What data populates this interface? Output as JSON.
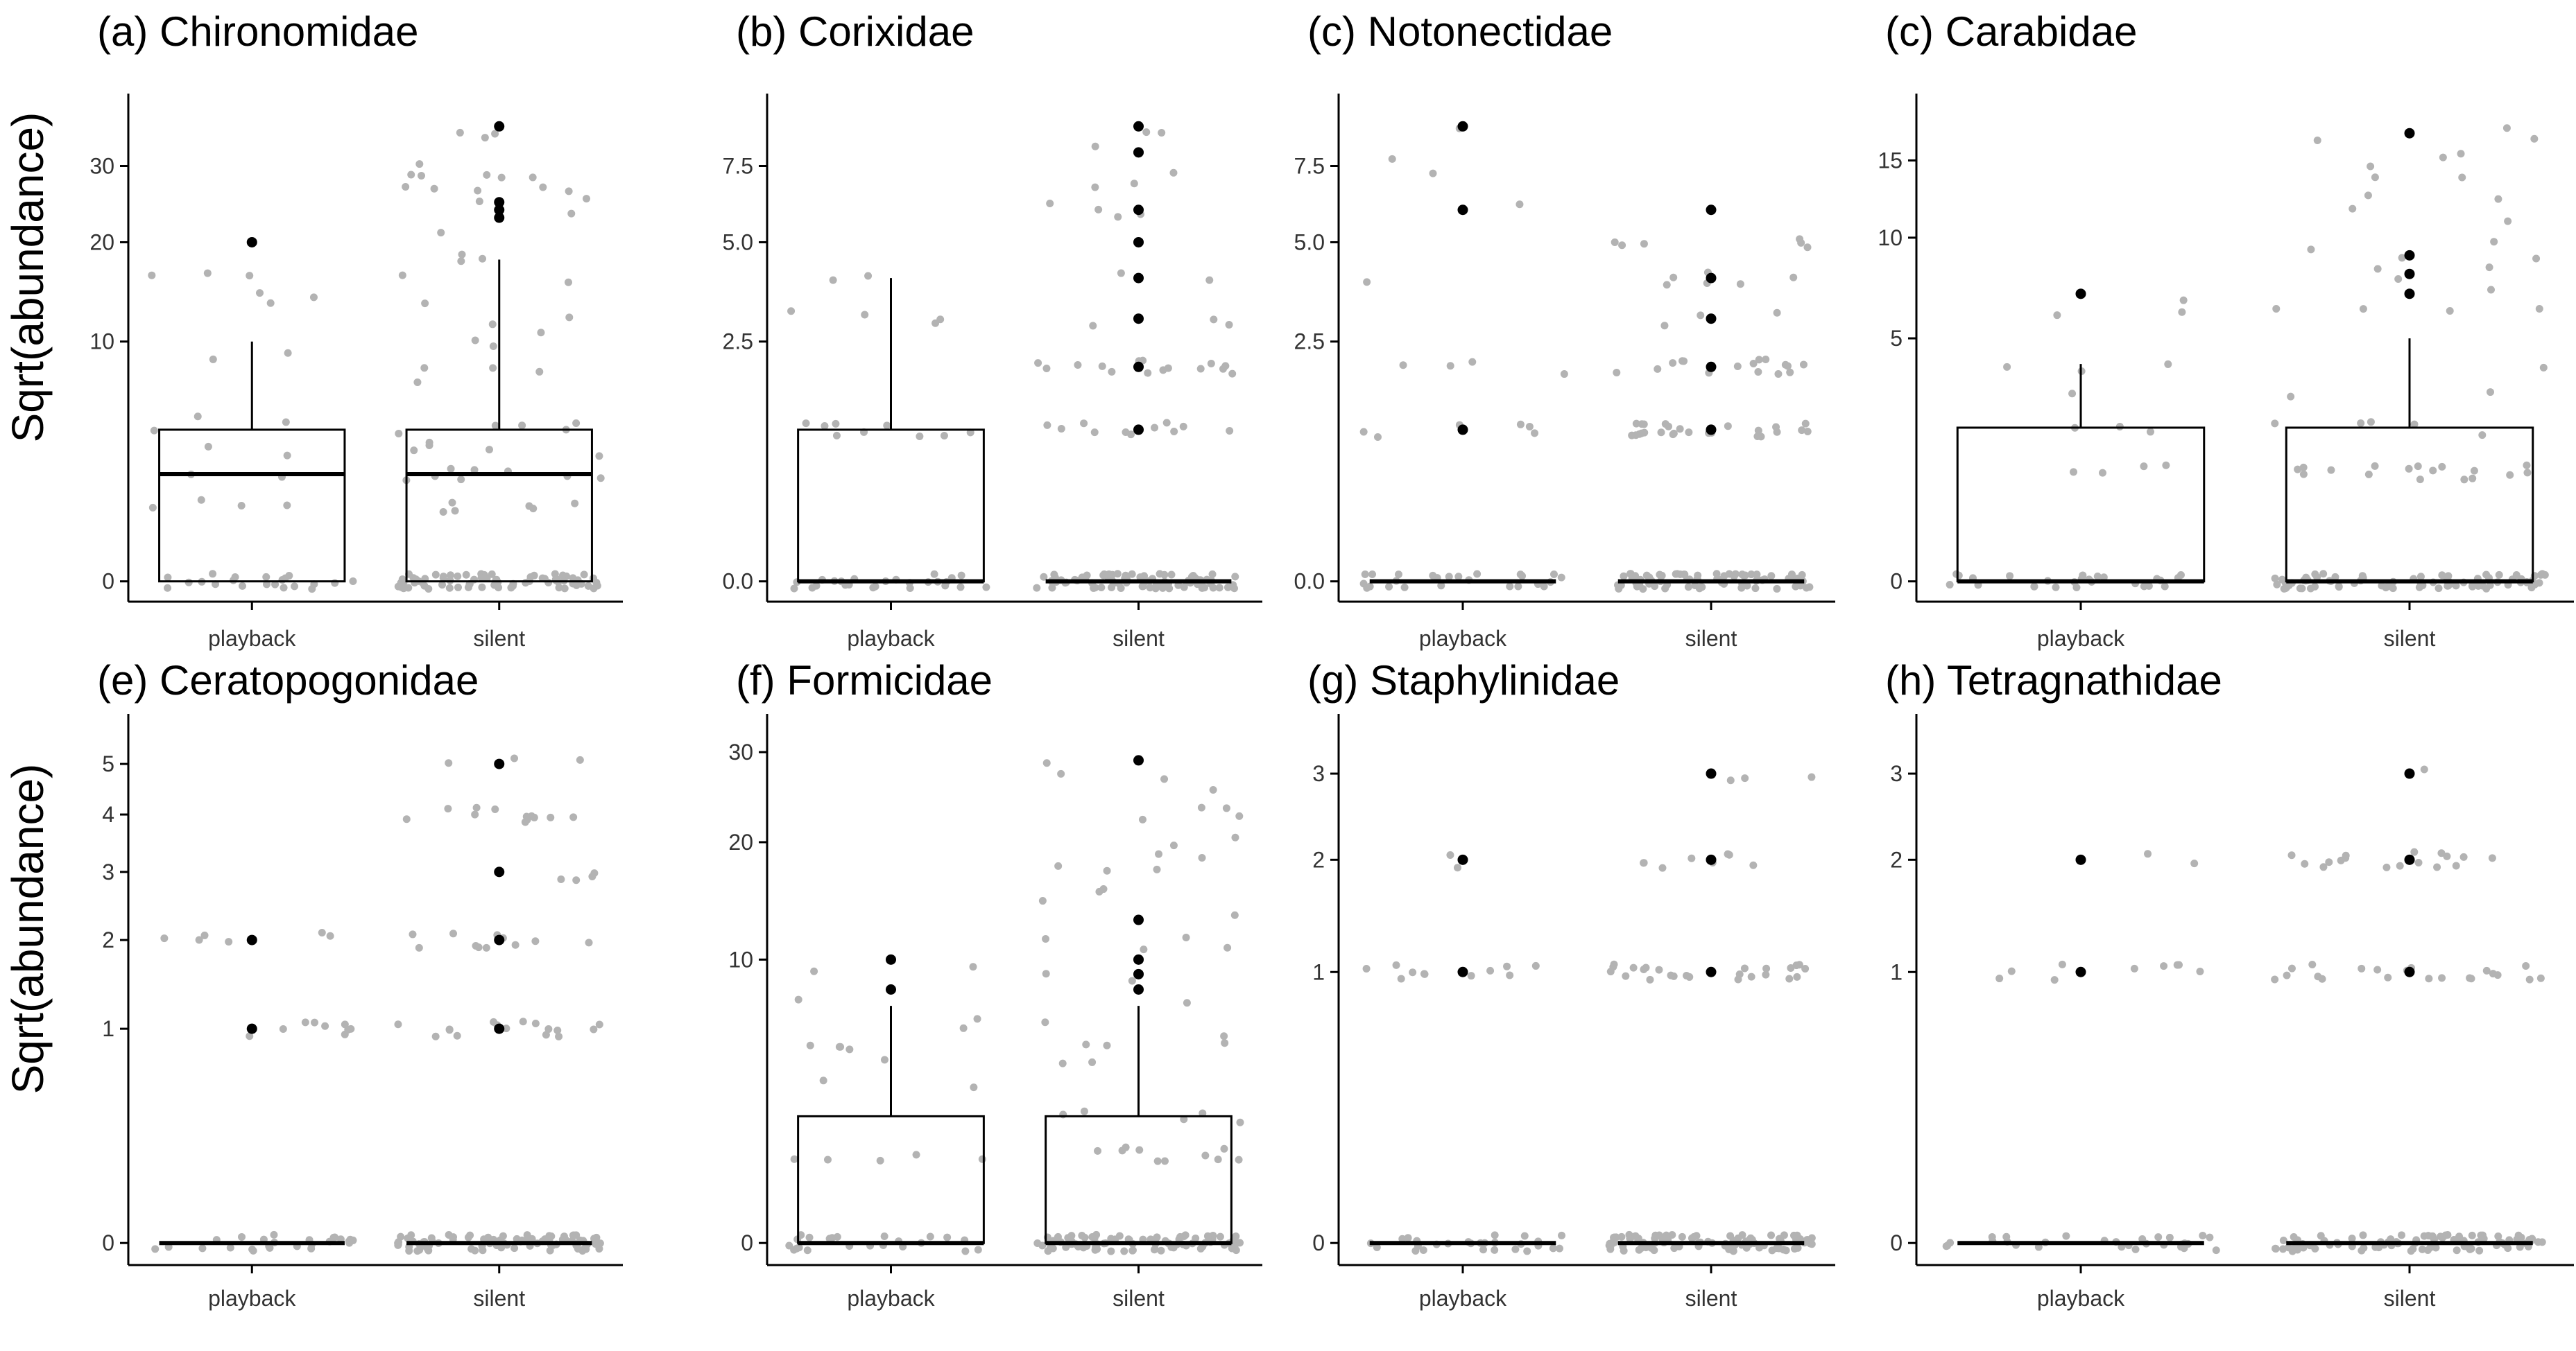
{
  "figure": {
    "y_axis_label": "Sqrt(abundance)",
    "colors": {
      "points": "#b3b3b3",
      "outliers": "#000000",
      "box": "#000000",
      "background": "#ffffff"
    }
  },
  "chart_data": [
    {
      "type": "box",
      "title": "(a) Chironomidae",
      "categories": [
        "playback",
        "silent"
      ],
      "y_scale": "sqrt",
      "yticks": [
        0,
        10,
        20,
        30
      ],
      "ylim": [
        0,
        38
      ],
      "boxes": [
        {
          "name": "playback",
          "q1": 0,
          "median": 2,
          "q3": 4,
          "whisker_low": 0,
          "whisker_high": 10,
          "outliers": [
            20
          ]
        },
        {
          "name": "silent",
          "q1": 0,
          "median": 2,
          "q3": 4,
          "whisker_low": 0,
          "whisker_high": 18,
          "outliers": [
            23,
            24,
            25,
            36
          ]
        }
      ]
    },
    {
      "type": "box",
      "title": "(b) Corixidae",
      "categories": [
        "playback",
        "silent"
      ],
      "y_scale": "sqrt",
      "yticks": [
        0.0,
        2.5,
        5.0,
        7.5
      ],
      "ylim": [
        0,
        9.5
      ],
      "boxes": [
        {
          "name": "playback",
          "q1": 0,
          "median": 0,
          "q3": 1,
          "whisker_low": 0,
          "whisker_high": 4,
          "outliers": []
        },
        {
          "name": "silent",
          "q1": 0,
          "median": 0,
          "q3": 0,
          "whisker_low": 0,
          "whisker_high": 0,
          "outliers": [
            1,
            2,
            3,
            4,
            5,
            6,
            8,
            9
          ]
        }
      ]
    },
    {
      "type": "box",
      "title": "(c) Notonectidae",
      "categories": [
        "playback",
        "silent"
      ],
      "y_scale": "sqrt",
      "yticks": [
        0.0,
        2.5,
        5.0,
        7.5
      ],
      "ylim": [
        0,
        9.5
      ],
      "boxes": [
        {
          "name": "playback",
          "q1": 0,
          "median": 0,
          "q3": 0,
          "whisker_low": 0,
          "whisker_high": 0,
          "outliers": [
            1,
            6,
            9
          ]
        },
        {
          "name": "silent",
          "q1": 0,
          "median": 0,
          "q3": 0,
          "whisker_low": 0,
          "whisker_high": 0,
          "outliers": [
            1,
            2,
            3,
            4,
            6
          ]
        }
      ]
    },
    {
      "type": "box",
      "title": "(c) Carabidae",
      "categories": [
        "playback",
        "silent"
      ],
      "y_scale": "sqrt",
      "yticks": [
        0,
        5,
        10,
        15
      ],
      "ylim": [
        0,
        18.5
      ],
      "boxes": [
        {
          "name": "playback",
          "q1": 0,
          "median": 0,
          "q3": 2,
          "whisker_low": 0,
          "whisker_high": 4,
          "outliers": [
            7
          ]
        },
        {
          "name": "silent",
          "q1": 0,
          "median": 0,
          "q3": 2,
          "whisker_low": 0,
          "whisker_high": 5,
          "outliers": [
            7,
            8,
            9,
            17
          ]
        }
      ]
    },
    {
      "type": "box",
      "title": "(e) Ceratopogonidae",
      "categories": [
        "playback",
        "silent"
      ],
      "y_scale": "sqrt",
      "yticks": [
        0,
        1,
        2,
        3,
        4,
        5
      ],
      "ylim": [
        0,
        5.6
      ],
      "boxes": [
        {
          "name": "playback",
          "q1": 0,
          "median": 0,
          "q3": 0,
          "whisker_low": 0,
          "whisker_high": 0,
          "outliers": [
            1,
            2
          ]
        },
        {
          "name": "silent",
          "q1": 0,
          "median": 0,
          "q3": 0,
          "whisker_low": 0,
          "whisker_high": 0,
          "outliers": [
            1,
            2,
            3,
            5
          ]
        }
      ]
    },
    {
      "type": "box",
      "title": "(f) Formicidae",
      "categories": [
        "playback",
        "silent"
      ],
      "y_scale": "sqrt",
      "yticks": [
        0,
        10,
        20,
        30
      ],
      "ylim": [
        0,
        32
      ],
      "boxes": [
        {
          "name": "playback",
          "q1": 0,
          "median": 0,
          "q3": 2,
          "whisker_low": 0,
          "whisker_high": 7,
          "outliers": [
            8,
            10
          ]
        },
        {
          "name": "silent",
          "q1": 0,
          "median": 0,
          "q3": 2,
          "whisker_low": 0,
          "whisker_high": 7,
          "outliers": [
            8,
            9,
            10,
            13,
            29
          ]
        }
      ]
    },
    {
      "type": "box",
      "title": "(g) Staphylinidae",
      "categories": [
        "playback",
        "silent"
      ],
      "y_scale": "sqrt",
      "yticks": [
        0,
        1,
        2,
        3
      ],
      "ylim": [
        0,
        3.5
      ],
      "boxes": [
        {
          "name": "playback",
          "q1": 0,
          "median": 0,
          "q3": 0,
          "whisker_low": 0,
          "whisker_high": 0,
          "outliers": [
            1,
            2
          ]
        },
        {
          "name": "silent",
          "q1": 0,
          "median": 0,
          "q3": 0,
          "whisker_low": 0,
          "whisker_high": 0,
          "outliers": [
            1,
            2,
            3
          ]
        }
      ]
    },
    {
      "type": "box",
      "title": "(h) Tetragnathidae",
      "categories": [
        "playback",
        "silent"
      ],
      "y_scale": "sqrt",
      "yticks": [
        0,
        1,
        2,
        3
      ],
      "ylim": [
        0,
        3.5
      ],
      "boxes": [
        {
          "name": "playback",
          "q1": 0,
          "median": 0,
          "q3": 0,
          "whisker_low": 0,
          "whisker_high": 0,
          "outliers": [
            1,
            2
          ]
        },
        {
          "name": "silent",
          "q1": 0,
          "median": 0,
          "q3": 0,
          "whisker_low": 0,
          "whisker_high": 0,
          "outliers": [
            1,
            2,
            3
          ]
        }
      ]
    }
  ]
}
